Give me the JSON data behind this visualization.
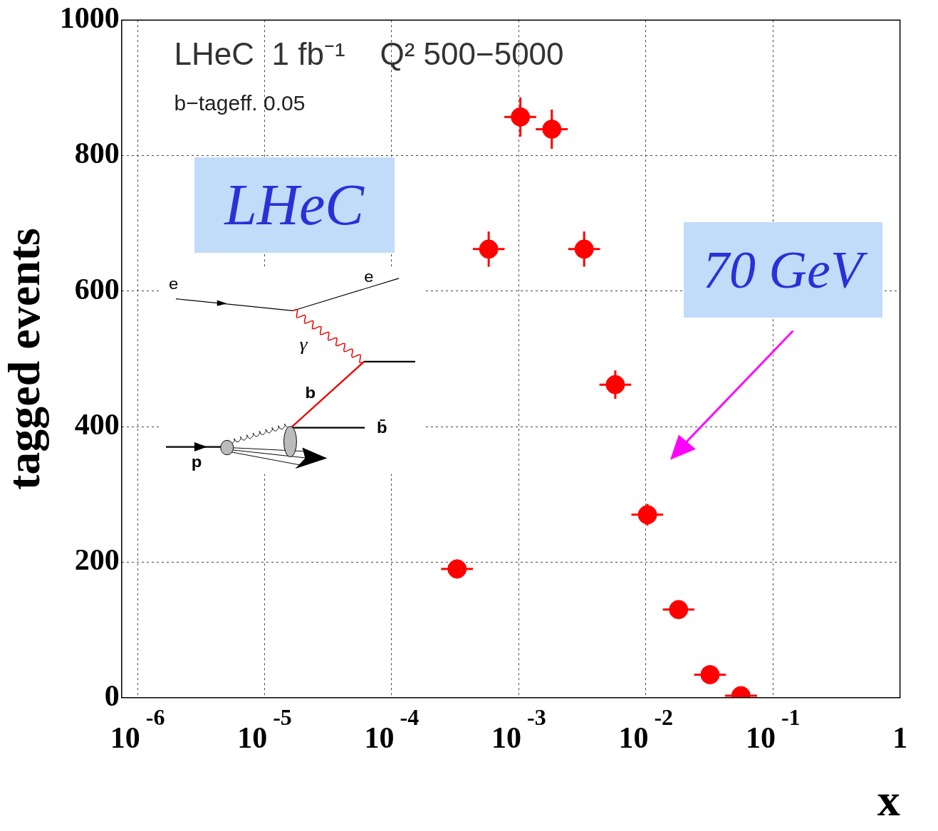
{
  "chart_data": {
    "type": "scatter",
    "title": "LHeC  1 fb⁻¹    Q² 500−5000",
    "subtitle": "b−tageff. 0.05",
    "xlabel": "x",
    "ylabel": "tagged events",
    "annotations": [
      "LHeC",
      "70 GeV",
      "e",
      "e",
      "γ",
      "b",
      "b̄",
      "p"
    ],
    "x": [
      0.000327,
      0.00058,
      0.00103,
      0.00182,
      0.00327,
      0.00575,
      0.0103,
      0.0181,
      0.032,
      0.056
    ],
    "values": [
      190,
      662,
      857,
      839,
      662,
      462,
      270,
      130,
      34,
      3
    ],
    "errors": [
      14,
      26,
      29,
      29,
      26,
      21,
      16,
      11,
      6,
      null
    ],
    "xerrors": [
      [
        0.000245,
        0.000436
      ],
      [
        0.000435,
        0.000774
      ],
      [
        0.00077,
        0.00137
      ],
      [
        0.00136,
        0.00243
      ],
      [
        0.00245,
        0.00436
      ],
      [
        0.00431,
        0.00767
      ],
      [
        0.0077,
        0.0137
      ],
      [
        0.0136,
        0.0241
      ],
      [
        0.024,
        0.0427
      ],
      [
        0.042,
        0.075
      ]
    ],
    "color": "#ff0000",
    "marker": "circle",
    "log": "x",
    "grid": true,
    "xlim": [
      7.5e-07,
      1
    ],
    "ylim": [
      0,
      1000
    ],
    "xticks": [
      {
        "value": 1e-06,
        "label": "10$^{-6}$"
      },
      {
        "value": 1e-05,
        "label": "10$^{-5}$"
      },
      {
        "value": 0.0001,
        "label": "10$^{-4}$"
      },
      {
        "value": 0.001,
        "label": "10$^{-3}$"
      },
      {
        "value": 0.01,
        "label": "10$^{-2}$"
      },
      {
        "value": 0.1,
        "label": "10$^{-1}$"
      },
      1
    ],
    "yticks": [
      0,
      200,
      400,
      600,
      800,
      1000
    ]
  }
}
